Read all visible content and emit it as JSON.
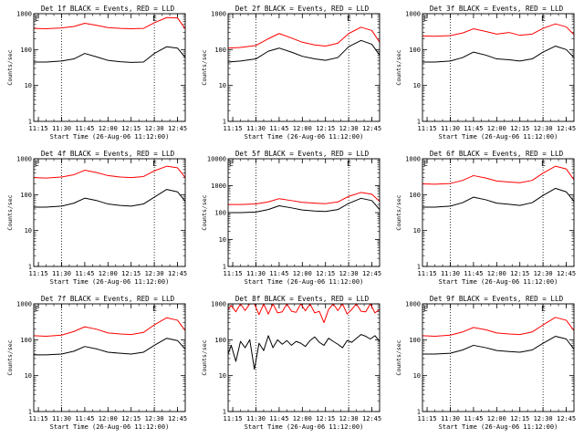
{
  "figure": {
    "background": "#ffffff",
    "colors": {
      "events": "#000000",
      "lld": "#ff0000",
      "axes": "#000000"
    }
  },
  "chart_data": [
    {
      "type": "line",
      "title": "Det 1f BLACK = Events, RED = LLD",
      "xlabel": "Start Time (26-Aug-06 11:12:00)",
      "ylabel": "Counts/sec",
      "yscale": "log",
      "ylim": [
        1,
        1000
      ],
      "ytick_labels": [
        "1",
        "10",
        "100",
        "1000"
      ],
      "xlim": [
        "11:12",
        "12:50"
      ],
      "xtick_labels": [
        "11:15",
        "11:30",
        "11:45",
        "12:00",
        "12:15",
        "12:30",
        "12:45"
      ],
      "markers": [
        {
          "x": "11:30",
          "label": ""
        },
        {
          "x": "12:30",
          "label": "E"
        }
      ],
      "top_left_label": "E",
      "x": [
        "11:12",
        "11:20",
        "11:30",
        "11:38",
        "11:45",
        "11:53",
        "12:00",
        "12:08",
        "12:15",
        "12:23",
        "12:30",
        "12:38",
        "12:45",
        "12:50"
      ],
      "series": [
        {
          "name": "Events",
          "color": "#000000",
          "values": [
            45,
            45,
            48,
            55,
            78,
            62,
            50,
            46,
            44,
            45,
            78,
            120,
            110,
            60
          ]
        },
        {
          "name": "LLD",
          "color": "#ff0000",
          "values": [
            390,
            380,
            400,
            440,
            540,
            470,
            410,
            390,
            380,
            390,
            560,
            780,
            760,
            380
          ]
        }
      ]
    },
    {
      "type": "line",
      "title": "Det 2f BLACK = Events, RED = LLD",
      "xlabel": "Start Time (26-Aug-06 11:12:00)",
      "ylabel": "Counts/sec",
      "yscale": "log",
      "ylim": [
        1,
        1000
      ],
      "ytick_labels": [
        "1",
        "10",
        "100",
        "1000"
      ],
      "xlim": [
        "11:12",
        "12:50"
      ],
      "xtick_labels": [
        "11:15",
        "11:30",
        "11:45",
        "12:00",
        "12:15",
        "12:30",
        "12:45"
      ],
      "markers": [
        {
          "x": "11:30",
          "label": ""
        },
        {
          "x": "12:30",
          "label": "E"
        }
      ],
      "top_left_label": "",
      "x": [
        "11:12",
        "11:20",
        "11:30",
        "11:38",
        "11:45",
        "11:53",
        "12:00",
        "12:08",
        "12:15",
        "12:23",
        "12:30",
        "12:38",
        "12:45",
        "12:50"
      ],
      "series": [
        {
          "name": "Events",
          "color": "#000000",
          "values": [
            45,
            48,
            55,
            90,
            110,
            85,
            65,
            55,
            50,
            60,
            120,
            180,
            140,
            70
          ]
        },
        {
          "name": "LLD",
          "color": "#ff0000",
          "values": [
            110,
            115,
            130,
            200,
            280,
            210,
            160,
            135,
            125,
            150,
            280,
            420,
            340,
            160
          ]
        }
      ]
    },
    {
      "type": "line",
      "title": "Det 3f BLACK = Events, RED = LLD",
      "xlabel": "Start Time (26-Aug-06 11:12:00)",
      "ylabel": "Counts/sec",
      "yscale": "log",
      "ylim": [
        1,
        1000
      ],
      "ytick_labels": [
        "1",
        "10",
        "100",
        "1000"
      ],
      "xlim": [
        "11:12",
        "12:50"
      ],
      "xtick_labels": [
        "11:15",
        "11:30",
        "11:45",
        "12:00",
        "12:15",
        "12:30",
        "12:45"
      ],
      "markers": [
        {
          "x": "11:30",
          "label": ""
        },
        {
          "x": "12:30",
          "label": "E"
        }
      ],
      "top_left_label": "E",
      "x": [
        "11:12",
        "11:20",
        "11:30",
        "11:38",
        "11:45",
        "11:53",
        "12:00",
        "12:08",
        "12:15",
        "12:23",
        "12:30",
        "12:38",
        "12:45",
        "12:50"
      ],
      "series": [
        {
          "name": "Events",
          "color": "#000000",
          "values": [
            45,
            45,
            48,
            60,
            85,
            70,
            55,
            52,
            48,
            55,
            85,
            125,
            100,
            60
          ]
        },
        {
          "name": "LLD",
          "color": "#ff0000",
          "values": [
            240,
            235,
            245,
            290,
            380,
            320,
            270,
            300,
            250,
            270,
            390,
            520,
            430,
            260
          ]
        }
      ]
    },
    {
      "type": "line",
      "title": "Det 4f BLACK = Events, RED = LLD",
      "xlabel": "Start Time (26-Aug-06 11:12:00)",
      "ylabel": "Counts/sec",
      "yscale": "log",
      "ylim": [
        1,
        1000
      ],
      "ytick_labels": [
        "1",
        "10",
        "100",
        "1000"
      ],
      "xlim": [
        "11:12",
        "12:50"
      ],
      "xtick_labels": [
        "11:15",
        "11:30",
        "11:45",
        "12:00",
        "12:15",
        "12:30",
        "12:45"
      ],
      "markers": [
        {
          "x": "11:30",
          "label": ""
        },
        {
          "x": "12:30",
          "label": "E"
        }
      ],
      "top_left_label": "E",
      "x": [
        "11:12",
        "11:20",
        "11:30",
        "11:38",
        "11:45",
        "11:53",
        "12:00",
        "12:08",
        "12:15",
        "12:23",
        "12:30",
        "12:38",
        "12:45",
        "12:50"
      ],
      "series": [
        {
          "name": "Events",
          "color": "#000000",
          "values": [
            45,
            45,
            48,
            58,
            80,
            68,
            55,
            50,
            48,
            55,
            85,
            140,
            120,
            65
          ]
        },
        {
          "name": "LLD",
          "color": "#ff0000",
          "values": [
            300,
            290,
            310,
            360,
            480,
            410,
            340,
            310,
            300,
            320,
            460,
            620,
            560,
            300
          ]
        }
      ]
    },
    {
      "type": "line",
      "title": "Det 5f BLACK = Events, RED = LLD",
      "xlabel": "Start Time (26-Aug-06 11:12:00)",
      "ylabel": "Counts/sec",
      "yscale": "log",
      "ylim": [
        1,
        10000
      ],
      "ytick_labels": [
        "1",
        "10",
        "100",
        "1000",
        "10000"
      ],
      "xlim": [
        "11:12",
        "12:50"
      ],
      "xtick_labels": [
        "11:15",
        "11:30",
        "11:45",
        "12:00",
        "12:15",
        "12:30",
        "12:45"
      ],
      "markers": [
        {
          "x": "11:30",
          "label": ""
        },
        {
          "x": "12:30",
          "label": "E"
        }
      ],
      "top_left_label": "E",
      "x": [
        "11:12",
        "11:20",
        "11:30",
        "11:38",
        "11:45",
        "11:53",
        "12:00",
        "12:08",
        "12:15",
        "12:23",
        "12:30",
        "12:38",
        "12:45",
        "12:50"
      ],
      "series": [
        {
          "name": "Events",
          "color": "#000000",
          "values": [
            100,
            100,
            105,
            130,
            180,
            150,
            125,
            115,
            110,
            130,
            220,
            340,
            280,
            130
          ]
        },
        {
          "name": "LLD",
          "color": "#ff0000",
          "values": [
            200,
            200,
            210,
            250,
            330,
            280,
            240,
            225,
            215,
            250,
            400,
            560,
            480,
            260
          ]
        }
      ]
    },
    {
      "type": "line",
      "title": "Det 6f BLACK = Events, RED = LLD",
      "xlabel": "Start Time (26-Aug-06 11:12:00)",
      "ylabel": "Counts/sec",
      "yscale": "log",
      "ylim": [
        1,
        1000
      ],
      "ytick_labels": [
        "1",
        "10",
        "100",
        "1000"
      ],
      "xlim": [
        "11:12",
        "12:50"
      ],
      "xtick_labels": [
        "11:15",
        "11:30",
        "11:45",
        "12:00",
        "12:15",
        "12:30",
        "12:45"
      ],
      "markers": [
        {
          "x": "11:30",
          "label": ""
        },
        {
          "x": "12:30",
          "label": "E"
        }
      ],
      "top_left_label": "E",
      "x": [
        "11:12",
        "11:20",
        "11:30",
        "11:38",
        "11:45",
        "11:53",
        "12:00",
        "12:08",
        "12:15",
        "12:23",
        "12:30",
        "12:38",
        "12:45",
        "12:50"
      ],
      "series": [
        {
          "name": "Events",
          "color": "#000000",
          "values": [
            45,
            45,
            48,
            60,
            85,
            72,
            58,
            54,
            50,
            60,
            95,
            150,
            120,
            65
          ]
        },
        {
          "name": "LLD",
          "color": "#ff0000",
          "values": [
            200,
            195,
            205,
            250,
            340,
            290,
            240,
            225,
            215,
            250,
            400,
            620,
            520,
            260
          ]
        }
      ]
    },
    {
      "type": "line",
      "title": "Det 7f BLACK = Events, RED = LLD",
      "xlabel": "Start Time (26-Aug-06 11:12:00)",
      "ylabel": "Counts/sec",
      "yscale": "log",
      "ylim": [
        1,
        1000
      ],
      "ytick_labels": [
        "1",
        "10",
        "100",
        "1000"
      ],
      "xlim": [
        "11:12",
        "12:50"
      ],
      "xtick_labels": [
        "11:15",
        "11:30",
        "11:45",
        "12:00",
        "12:15",
        "12:30",
        "12:45"
      ],
      "markers": [
        {
          "x": "11:30",
          "label": ""
        },
        {
          "x": "12:30",
          "label": "E"
        }
      ],
      "top_left_label": "E",
      "x": [
        "11:12",
        "11:20",
        "11:30",
        "11:38",
        "11:45",
        "11:53",
        "12:00",
        "12:08",
        "12:15",
        "12:23",
        "12:30",
        "12:38",
        "12:45",
        "12:50"
      ],
      "series": [
        {
          "name": "Events",
          "color": "#000000",
          "values": [
            38,
            38,
            40,
            48,
            65,
            55,
            45,
            42,
            40,
            45,
            70,
            110,
            95,
            55
          ]
        },
        {
          "name": "LLD",
          "color": "#ff0000",
          "values": [
            130,
            125,
            135,
            170,
            230,
            195,
            155,
            145,
            140,
            160,
            260,
            410,
            350,
            180
          ]
        }
      ]
    },
    {
      "type": "line",
      "title": "Det 8f BLACK = Events, RED = LLD",
      "xlabel": "Start Time (26-Aug-06 11:12:00)",
      "ylabel": "Counts/sec",
      "yscale": "log",
      "ylim": [
        1,
        1000
      ],
      "ytick_labels": [
        "1",
        "10",
        "100",
        "1000"
      ],
      "xlim": [
        "11:12",
        "12:50"
      ],
      "xtick_labels": [
        "11:15",
        "11:30",
        "11:45",
        "12:00",
        "12:15",
        "12:30",
        "12:45"
      ],
      "markers": [
        {
          "x": "11:30",
          "label": ""
        },
        {
          "x": "12:30",
          "label": ""
        }
      ],
      "top_left_label": "",
      "x": [
        "11:12",
        "11:14",
        "11:17",
        "11:20",
        "11:23",
        "11:26",
        "11:29",
        "11:32",
        "11:35",
        "11:38",
        "11:41",
        "11:44",
        "11:47",
        "11:50",
        "11:53",
        "11:56",
        "11:59",
        "12:02",
        "12:05",
        "12:08",
        "12:11",
        "12:14",
        "12:17",
        "12:20",
        "12:23",
        "12:26",
        "12:29",
        "12:32",
        "12:35",
        "12:38",
        "12:41",
        "12:44",
        "12:47",
        "12:50"
      ],
      "series": [
        {
          "name": "Events",
          "color": "#000000",
          "values": [
            40,
            70,
            25,
            90,
            60,
            100,
            15,
            80,
            50,
            130,
            60,
            100,
            75,
            95,
            70,
            90,
            80,
            65,
            95,
            120,
            85,
            70,
            110,
            90,
            75,
            60,
            95,
            85,
            110,
            140,
            125,
            105,
            130,
            90
          ]
        },
        {
          "name": "LLD",
          "color": "#ff0000",
          "values": [
            700,
            900,
            600,
            1000,
            650,
            1000,
            1000,
            500,
            1000,
            520,
            1000,
            560,
            600,
            1000,
            620,
            580,
            1000,
            640,
            1000,
            560,
            620,
            300,
            700,
            1000,
            650,
            1000,
            520,
            700,
            1000,
            620,
            600,
            1000,
            560,
            700
          ]
        }
      ]
    },
    {
      "type": "line",
      "title": "Det 9f BLACK = Events, RED = LLD",
      "xlabel": "Start Time (26-Aug-06 11:12:00)",
      "ylabel": "Counts/sec",
      "yscale": "log",
      "ylim": [
        1,
        1000
      ],
      "ytick_labels": [
        "1",
        "10",
        "100",
        "1000"
      ],
      "xlim": [
        "11:12",
        "12:50"
      ],
      "xtick_labels": [
        "11:15",
        "11:30",
        "11:45",
        "12:00",
        "12:15",
        "12:30",
        "12:45"
      ],
      "markers": [
        {
          "x": "11:30",
          "label": ""
        },
        {
          "x": "12:30",
          "label": "E"
        }
      ],
      "top_left_label": "E",
      "x": [
        "11:12",
        "11:20",
        "11:30",
        "11:38",
        "11:45",
        "11:53",
        "12:00",
        "12:08",
        "12:15",
        "12:23",
        "12:30",
        "12:38",
        "12:45",
        "12:50"
      ],
      "series": [
        {
          "name": "Events",
          "color": "#000000",
          "values": [
            40,
            40,
            42,
            52,
            70,
            60,
            50,
            47,
            45,
            52,
            80,
            125,
            105,
            55
          ]
        },
        {
          "name": "LLD",
          "color": "#ff0000",
          "values": [
            130,
            125,
            135,
            165,
            220,
            190,
            155,
            145,
            140,
            165,
            260,
            420,
            350,
            180
          ]
        }
      ]
    }
  ]
}
